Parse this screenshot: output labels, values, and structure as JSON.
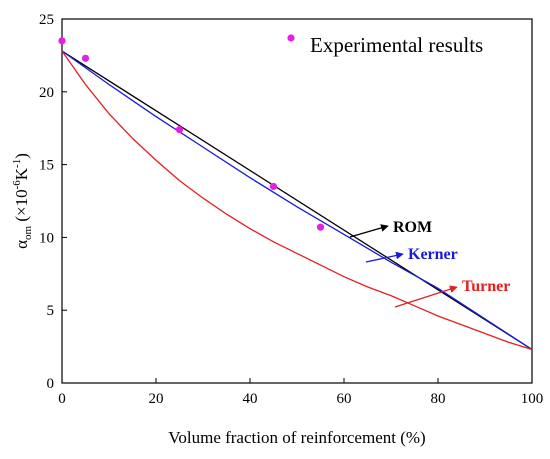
{
  "chart_data": {
    "type": "line",
    "xlabel": "Volume fraction of reinforcement (%)",
    "ylabel": {
      "alpha": "α",
      "sub": "om",
      "open": " (×10",
      "exp1": "-6",
      "mid": "K",
      "exp2": "-1",
      "close": ")"
    },
    "xlim": [
      0,
      100
    ],
    "ylim": [
      0,
      25
    ],
    "x_ticks": [
      0,
      20,
      40,
      60,
      80,
      100
    ],
    "y_ticks": [
      0,
      5,
      10,
      15,
      20,
      25
    ],
    "grid": false,
    "legend": {
      "position": "top-right",
      "label": "Experimental results"
    },
    "scatter": {
      "name": "Experimental results",
      "color": "#e61ee6",
      "points": [
        {
          "x": 0,
          "y": 23.5
        },
        {
          "x": 5,
          "y": 22.3
        },
        {
          "x": 25,
          "y": 17.4
        },
        {
          "x": 45,
          "y": 13.5
        },
        {
          "x": 55,
          "y": 10.7
        }
      ]
    },
    "series": [
      {
        "name": "ROM",
        "color": "#000000",
        "x": [
          0,
          100
        ],
        "y": [
          22.8,
          2.3
        ]
      },
      {
        "name": "Kerner",
        "color": "#1a1adb",
        "x": [
          0,
          10,
          20,
          30,
          40,
          50,
          60,
          70,
          80,
          90,
          100
        ],
        "y": [
          22.8,
          20.5,
          18.3,
          16.2,
          14.1,
          12.1,
          10.2,
          8.3,
          6.5,
          4.4,
          2.3
        ]
      },
      {
        "name": "Turner",
        "color": "#e61e1e",
        "x": [
          0,
          5,
          10,
          15,
          20,
          25,
          30,
          35,
          40,
          45,
          50,
          55,
          60,
          65,
          70,
          75,
          80,
          85,
          90,
          95,
          100
        ],
        "y": [
          22.8,
          20.5,
          18.5,
          16.8,
          15.3,
          13.9,
          12.7,
          11.6,
          10.6,
          9.7,
          8.9,
          8.1,
          7.3,
          6.6,
          6.0,
          5.3,
          4.6,
          4.0,
          3.4,
          2.8,
          2.3
        ]
      }
    ],
    "annotations": [
      {
        "text": "ROM",
        "color": "#000000"
      },
      {
        "text": "Kerner",
        "color": "#1a1adb"
      },
      {
        "text": "Turner",
        "color": "#e61e1e"
      }
    ]
  }
}
